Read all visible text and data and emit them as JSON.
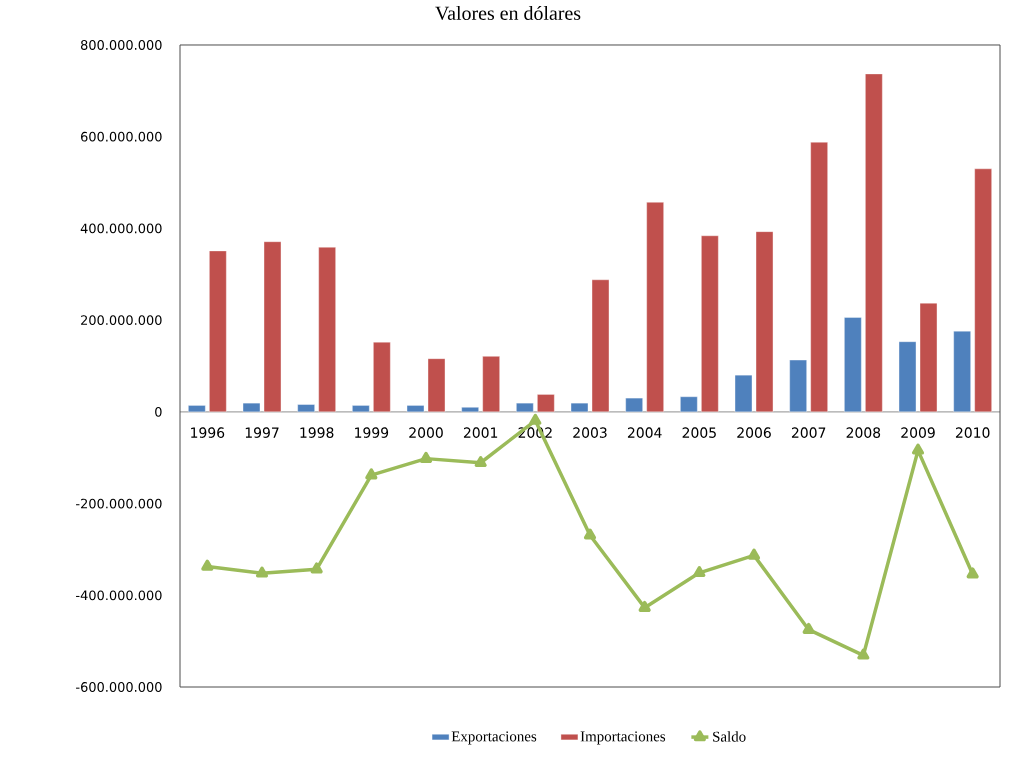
{
  "chart_data": {
    "type": "bar",
    "title": "Valores en dólares",
    "categories": [
      "1996",
      "1997",
      "1998",
      "1999",
      "2000",
      "2001",
      "2002",
      "2003",
      "2004",
      "2005",
      "2006",
      "2007",
      "2008",
      "2009",
      "2010"
    ],
    "series": [
      {
        "name": "Exportaciones",
        "color": "#4f81bd",
        "values": [
          14000000,
          19000000,
          16000000,
          14000000,
          14000000,
          10000000,
          19000000,
          19000000,
          30000000,
          33000000,
          80000000,
          113000000,
          206000000,
          153000000,
          176000000
        ]
      },
      {
        "name": "Importaciones",
        "color": "#c0504d",
        "values": [
          351000000,
          371000000,
          359000000,
          152000000,
          116000000,
          121000000,
          38000000,
          288000000,
          457000000,
          384000000,
          393000000,
          588000000,
          737000000,
          237000000,
          530000000
        ]
      },
      {
        "name": "Saldo",
        "type": "line",
        "color": "#9bbb59",
        "marker": "triangle",
        "values": [
          -337000000,
          -352000000,
          -343000000,
          -138000000,
          -102000000,
          -111000000,
          -19000000,
          -269000000,
          -427000000,
          -351000000,
          -313000000,
          -475000000,
          -531000000,
          -84000000,
          -354000000
        ]
      }
    ],
    "ylim": [
      -600000000,
      800000000
    ],
    "yticks": [
      {
        "value": -600000000,
        "label": "-600.000.000"
      },
      {
        "value": -400000000,
        "label": "-400.000.000"
      },
      {
        "value": -200000000,
        "label": "-200.000.000"
      },
      0,
      {
        "value": 200000000,
        "label": "200.000.000"
      },
      {
        "value": 400000000,
        "label": "400.000.000"
      },
      {
        "value": 600000000,
        "label": "600.000.000"
      },
      {
        "value": 800000000,
        "label": "800.000.000"
      }
    ],
    "legend": "bottom"
  }
}
